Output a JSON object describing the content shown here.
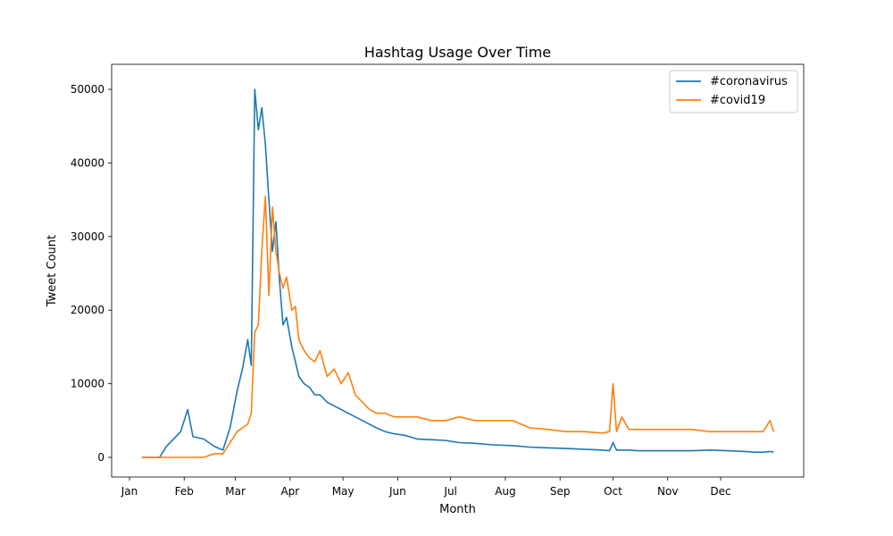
{
  "chart_data": {
    "type": "line",
    "title": "Hashtag Usage Over Time",
    "xlabel": "Month",
    "ylabel": "Tweet Count",
    "x_ticks": [
      "Jan",
      "Feb",
      "Mar",
      "Apr",
      "May",
      "Jun",
      "Jul",
      "Aug",
      "Sep",
      "Oct",
      "Nov",
      "Dec"
    ],
    "y_ticks": [
      0,
      10000,
      20000,
      30000,
      40000,
      50000
    ],
    "ylim": [
      -2500,
      52500
    ],
    "legend_position": "top-right",
    "grid": false,
    "x_dates": [
      "2020-01-08",
      "2020-01-18",
      "2020-01-22",
      "2020-01-26",
      "2020-01-30",
      "2020-02-03",
      "2020-02-06",
      "2020-02-12",
      "2020-02-18",
      "2020-02-23",
      "2020-02-27",
      "2020-03-02",
      "2020-03-05",
      "2020-03-08",
      "2020-03-10",
      "2020-03-12",
      "2020-03-14",
      "2020-03-16",
      "2020-03-18",
      "2020-03-20",
      "2020-03-22",
      "2020-03-24",
      "2020-03-26",
      "2020-03-28",
      "2020-03-30",
      "2020-04-02",
      "2020-04-04",
      "2020-04-06",
      "2020-04-09",
      "2020-04-12",
      "2020-04-15",
      "2020-04-18",
      "2020-04-22",
      "2020-04-26",
      "2020-04-30",
      "2020-05-04",
      "2020-05-08",
      "2020-05-12",
      "2020-05-16",
      "2020-05-20",
      "2020-05-25",
      "2020-05-30",
      "2020-06-05",
      "2020-06-12",
      "2020-06-20",
      "2020-06-28",
      "2020-07-06",
      "2020-07-15",
      "2020-07-25",
      "2020-08-05",
      "2020-08-15",
      "2020-08-25",
      "2020-09-05",
      "2020-09-15",
      "2020-09-25",
      "2020-09-29",
      "2020-10-01",
      "2020-10-03",
      "2020-10-06",
      "2020-10-10",
      "2020-10-15",
      "2020-10-25",
      "2020-11-05",
      "2020-11-15",
      "2020-11-25",
      "2020-12-05",
      "2020-12-15",
      "2020-12-20",
      "2020-12-25",
      "2020-12-29",
      "2020-12-31"
    ],
    "series": [
      {
        "name": "#coronavirus",
        "color": "#1f77b4",
        "values": [
          0,
          0,
          1500,
          2500,
          3500,
          6500,
          2800,
          2500,
          1500,
          1000,
          4000,
          9000,
          12000,
          16000,
          12500,
          50000,
          44500,
          47500,
          42500,
          35000,
          28000,
          32000,
          24000,
          18000,
          19000,
          15000,
          13000,
          11000,
          10000,
          9500,
          8500,
          8500,
          7500,
          7000,
          6500,
          6000,
          5500,
          5000,
          4500,
          4000,
          3500,
          3200,
          3000,
          2500,
          2400,
          2300,
          2000,
          1900,
          1700,
          1600,
          1400,
          1300,
          1200,
          1100,
          1000,
          900,
          2000,
          1000,
          1000,
          1000,
          900,
          900,
          900,
          900,
          1000,
          900,
          800,
          700,
          700,
          800,
          700
        ]
      },
      {
        "name": "#covid19",
        "color": "#ff7f0e",
        "values": [
          0,
          0,
          0,
          0,
          0,
          0,
          0,
          0,
          500,
          500,
          2000,
          3500,
          4000,
          4500,
          6000,
          17000,
          18000,
          28000,
          35500,
          22000,
          34000,
          28000,
          25000,
          23000,
          24500,
          20000,
          20500,
          16000,
          14500,
          13500,
          13000,
          14500,
          11000,
          12000,
          10000,
          11500,
          8500,
          7500,
          6500,
          6000,
          6000,
          5500,
          5500,
          5500,
          5000,
          5000,
          5500,
          5000,
          5000,
          5000,
          4000,
          3800,
          3500,
          3500,
          3300,
          3500,
          10000,
          3500,
          5500,
          3800,
          3800,
          3800,
          3800,
          3800,
          3500,
          3500,
          3500,
          3500,
          3500,
          5000,
          3500
        ]
      }
    ]
  }
}
